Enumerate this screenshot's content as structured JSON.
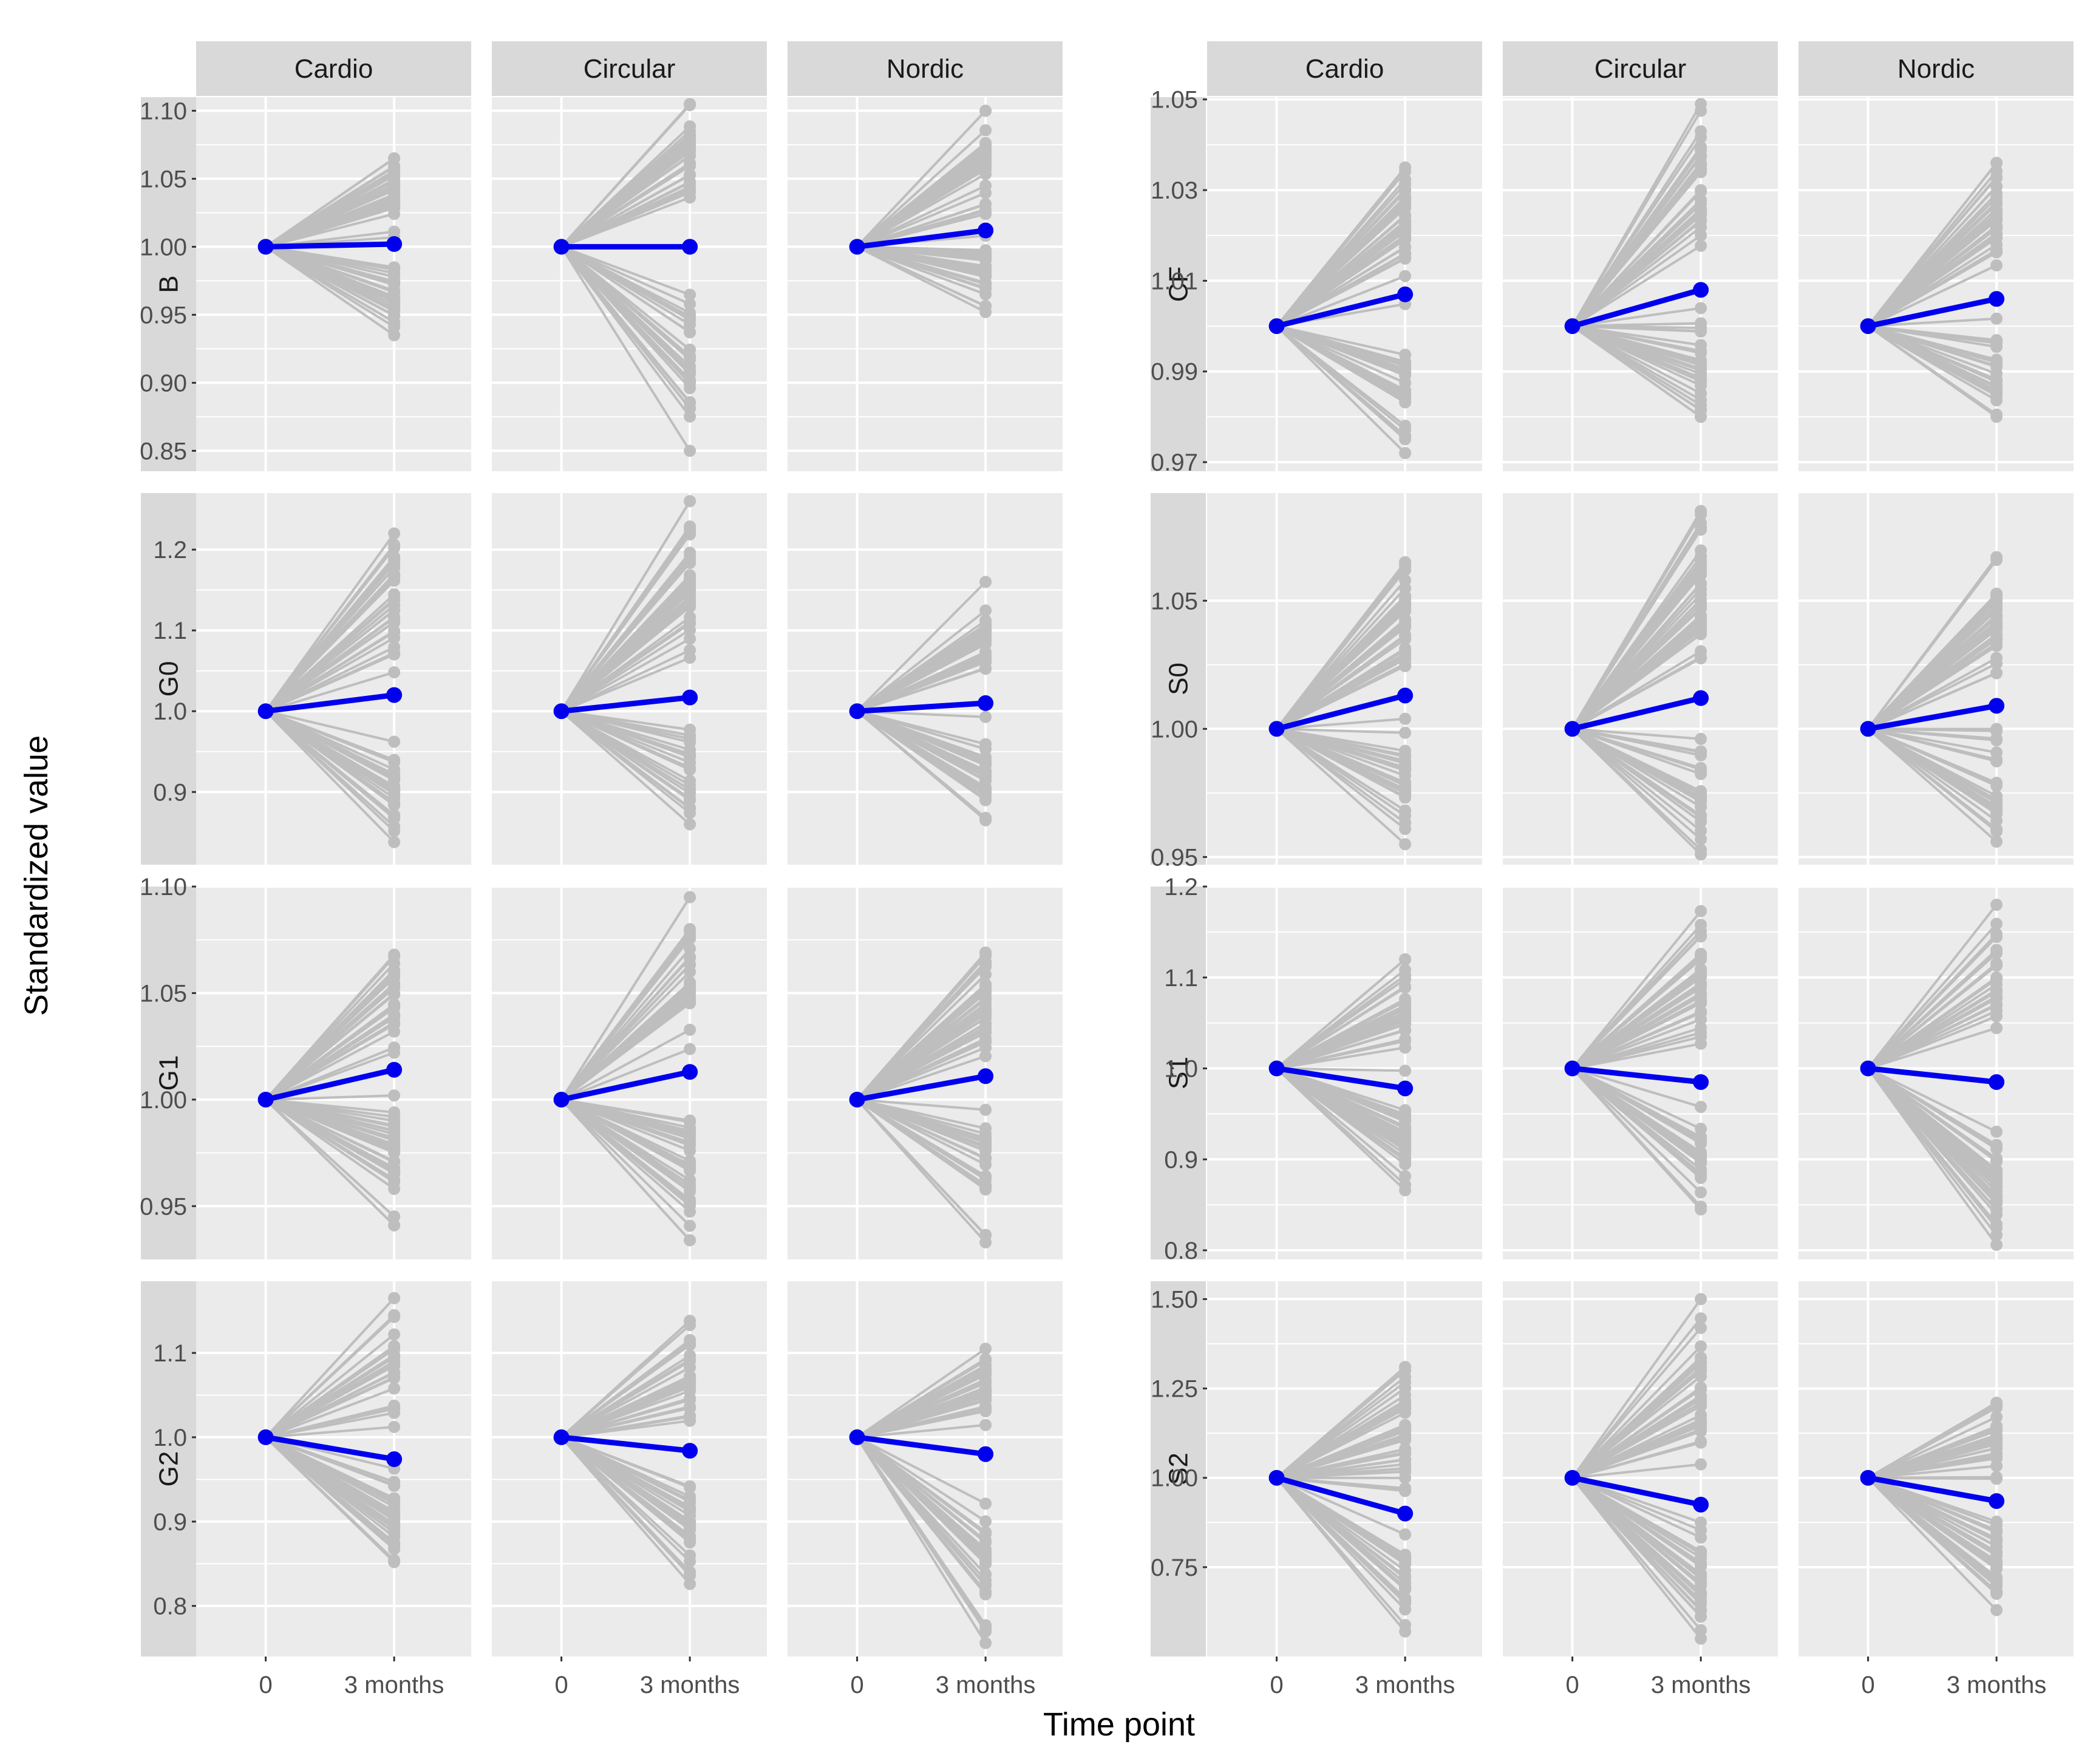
{
  "chart_data": {
    "type": "line",
    "title": "",
    "xlabel": "Time point",
    "ylabel": "Standardized value",
    "x_categories": [
      "0",
      "3 months"
    ],
    "groups": [
      "Cardio",
      "Circular",
      "Nordic"
    ],
    "colors": {
      "panel_background": "#ebebeb",
      "strip_background": "#d9d9d9",
      "grid": "#ffffff",
      "individual_lines": "#bebebe",
      "mean_line": "#0000ee"
    },
    "blocks": [
      {
        "side": "left",
        "rows": [
          {
            "label": "B",
            "ylim": [
              0.835,
              1.11
            ],
            "ticks": [
              0.85,
              0.9,
              0.95,
              1.0,
              1.05,
              1.1
            ],
            "tick_labels": [
              "0.85",
              "0.90",
              "0.95",
              "1.00",
              "1.05",
              "1.10"
            ],
            "series": [
              {
                "group": "Cardio",
                "mean": [
                  1.0,
                  1.002
                ],
                "range": [
                  0.935,
                  1.065
                ]
              },
              {
                "group": "Circular",
                "mean": [
                  1.0,
                  1.0
                ],
                "range": [
                  0.85,
                  1.105
                ]
              },
              {
                "group": "Nordic",
                "mean": [
                  1.0,
                  1.012
                ],
                "range": [
                  0.952,
                  1.1
                ]
              }
            ]
          },
          {
            "label": "G0",
            "ylim": [
              0.81,
              1.27
            ],
            "ticks": [
              0.9,
              1.0,
              1.1,
              1.2
            ],
            "tick_labels": [
              "0.9",
              "1.0",
              "1.1",
              "1.2"
            ],
            "series": [
              {
                "group": "Cardio",
                "mean": [
                  1.0,
                  1.02
                ],
                "range": [
                  0.838,
                  1.22
                ]
              },
              {
                "group": "Circular",
                "mean": [
                  1.0,
                  1.017
                ],
                "range": [
                  0.86,
                  1.26
                ]
              },
              {
                "group": "Nordic",
                "mean": [
                  1.0,
                  1.01
                ],
                "range": [
                  0.865,
                  1.16
                ]
              }
            ]
          },
          {
            "label": "G1",
            "ylim": [
              0.925,
              1.1
            ],
            "ticks": [
              0.95,
              1.0,
              1.05,
              1.1
            ],
            "tick_labels": [
              "0.95",
              "1.00",
              "1.05",
              "1.10"
            ],
            "series": [
              {
                "group": "Cardio",
                "mean": [
                  1.0,
                  1.014
                ],
                "range": [
                  0.941,
                  1.068
                ]
              },
              {
                "group": "Circular",
                "mean": [
                  1.0,
                  1.013
                ],
                "range": [
                  0.934,
                  1.095
                ]
              },
              {
                "group": "Nordic",
                "mean": [
                  1.0,
                  1.011
                ],
                "range": [
                  0.933,
                  1.069
                ]
              }
            ]
          },
          {
            "label": "G2",
            "ylim": [
              0.74,
              1.185
            ],
            "ticks": [
              0.8,
              0.9,
              1.0,
              1.1
            ],
            "tick_labels": [
              "0.8",
              "0.9",
              "1.0",
              "1.1"
            ],
            "series": [
              {
                "group": "Cardio",
                "mean": [
                  1.0,
                  0.974
                ],
                "range": [
                  0.852,
                  1.165
                ]
              },
              {
                "group": "Circular",
                "mean": [
                  1.0,
                  0.984
                ],
                "range": [
                  0.826,
                  1.138
                ]
              },
              {
                "group": "Nordic",
                "mean": [
                  1.0,
                  0.98
                ],
                "range": [
                  0.756,
                  1.105
                ]
              }
            ]
          }
        ]
      },
      {
        "side": "right",
        "rows": [
          {
            "label": "CF",
            "ylim": [
              0.968,
              1.0505
            ],
            "ticks": [
              0.97,
              0.99,
              1.01,
              1.03,
              1.05
            ],
            "tick_labels": [
              "0.97",
              "0.99",
              "1.01",
              "1.03",
              "1.05"
            ],
            "series": [
              {
                "group": "Cardio",
                "mean": [
                  1.0,
                  1.007
                ],
                "range": [
                  0.972,
                  1.035
                ]
              },
              {
                "group": "Circular",
                "mean": [
                  1.0,
                  1.008
                ],
                "range": [
                  0.98,
                  1.049
                ]
              },
              {
                "group": "Nordic",
                "mean": [
                  1.0,
                  1.006
                ],
                "range": [
                  0.98,
                  1.036
                ]
              }
            ]
          },
          {
            "label": "S0",
            "ylim": [
              0.947,
              1.092
            ],
            "ticks": [
              0.95,
              1.0,
              1.05
            ],
            "tick_labels": [
              "0.95",
              "1.00",
              "1.05"
            ],
            "series": [
              {
                "group": "Cardio",
                "mean": [
                  1.0,
                  1.013
                ],
                "range": [
                  0.955,
                  1.065
                ]
              },
              {
                "group": "Circular",
                "mean": [
                  1.0,
                  1.012
                ],
                "range": [
                  0.951,
                  1.085
                ]
              },
              {
                "group": "Nordic",
                "mean": [
                  1.0,
                  1.009
                ],
                "range": [
                  0.956,
                  1.067
                ]
              }
            ]
          },
          {
            "label": "S1",
            "ylim": [
              0.79,
              1.2
            ],
            "ticks": [
              0.8,
              0.9,
              1.0,
              1.1,
              1.2
            ],
            "tick_labels": [
              "0.8",
              "0.9",
              "1.0",
              "1.1",
              "1.2"
            ],
            "series": [
              {
                "group": "Cardio",
                "mean": [
                  1.0,
                  0.978
                ],
                "range": [
                  0.866,
                  1.12
                ]
              },
              {
                "group": "Circular",
                "mean": [
                  1.0,
                  0.985
                ],
                "range": [
                  0.845,
                  1.173
                ]
              },
              {
                "group": "Nordic",
                "mean": [
                  1.0,
                  0.985
                ],
                "range": [
                  0.806,
                  1.18
                ]
              }
            ]
          },
          {
            "label": "S2",
            "ylim": [
              0.5,
              1.55
            ],
            "ticks": [
              0.75,
              1.0,
              1.25,
              1.5
            ],
            "tick_labels": [
              "0.75",
              "1.00",
              "1.25",
              "1.50"
            ],
            "series": [
              {
                "group": "Cardio",
                "mean": [
                  1.0,
                  0.9
                ],
                "range": [
                  0.57,
                  1.31
                ]
              },
              {
                "group": "Circular",
                "mean": [
                  1.0,
                  0.925
                ],
                "range": [
                  0.55,
                  1.5
                ]
              },
              {
                "group": "Nordic",
                "mean": [
                  1.0,
                  0.935
                ],
                "range": [
                  0.63,
                  1.21
                ]
              }
            ]
          }
        ]
      }
    ]
  }
}
